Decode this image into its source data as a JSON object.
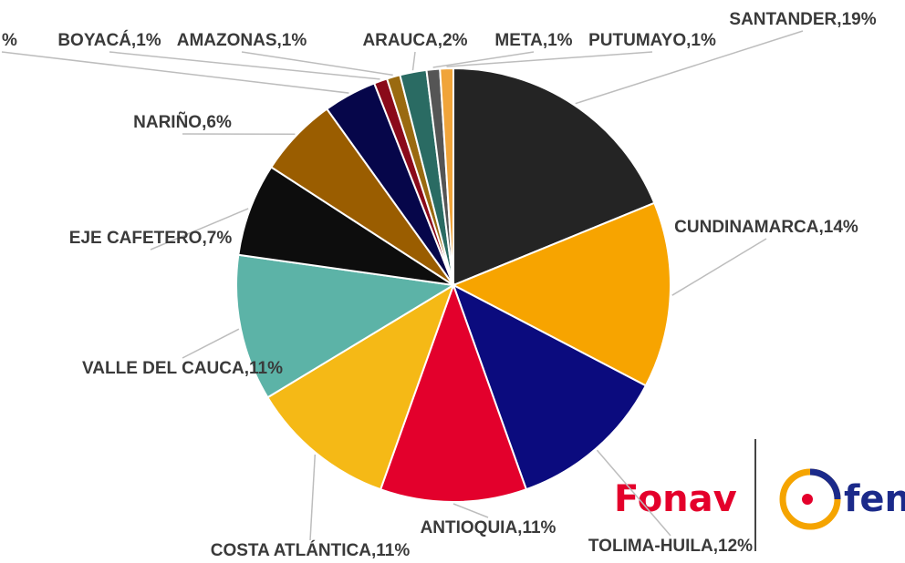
{
  "chart_data": {
    "type": "pie",
    "categories": [
      "SANTANDER",
      "CUNDINAMARCA",
      "TOLIMA-HUILA",
      "ANTIOQUIA",
      "COSTA ATLÁNTICA",
      "VALLE DEL CAUCA",
      "EJE CAFETERO",
      "NARIÑO",
      null,
      "BOYACÁ",
      "AMAZONAS",
      "ARAUCA",
      "META",
      "PUTUMAYO"
    ],
    "values": [
      19,
      14,
      12,
      11,
      11,
      11,
      7,
      6,
      4,
      1,
      1,
      2,
      1,
      1
    ],
    "value_labels": [
      "19%",
      "14%",
      "12%",
      "11%",
      "11%",
      "11%",
      "7%",
      "6%",
      "%",
      "1%",
      "1%",
      "2%",
      "1%",
      "1%"
    ],
    "label_separator": ",",
    "colors": [
      "#242424",
      "#f7a400",
      "#0b0b7e",
      "#e3002c",
      "#f5b916",
      "#5cb3a7",
      "#0d0d0d",
      "#9a5d00",
      "#06064a",
      "#8a0a1a",
      "#9a6a10",
      "#2a6b63",
      "#555555",
      "#f0a43a"
    ]
  },
  "logos": [
    "Fonav",
    "fen"
  ]
}
